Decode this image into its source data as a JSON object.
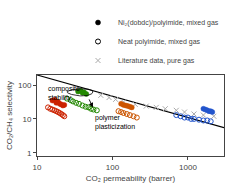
{
  "chart_data": {
    "type": "scatter",
    "xlabel": "CO₂ permeability (barrer)",
    "ylabel": "CO₂/CH₄ selectivity",
    "log": true,
    "xlim": [
      10,
      3000
    ],
    "ylim": [
      0.8,
      200
    ],
    "xticks": [
      10,
      100,
      1000
    ],
    "yticks": [
      1,
      10,
      100
    ],
    "grid": false,
    "legend": "upper right",
    "series": [
      {
        "name": "Ni₂(dobdc)/polyimide, mixed gas",
        "type": "scatter",
        "color": "#000000",
        "marker": "circle",
        "x": [],
        "values": []
      },
      {
        "name": "Neat polyimide, mixed gas",
        "type": "scatter",
        "color": "#000000",
        "marker": "circle-open",
        "x": [],
        "values": []
      },
      {
        "type": "line",
        "color": "#000000",
        "line_style": "solid",
        "x": [
          10,
          3000
        ],
        "values": [
          200,
          5.5
        ]
      },
      {
        "name": "Literature data, pure gas",
        "type": "scatter",
        "color": "#aaaaaa",
        "marker": "x",
        "x": [
          70,
          90,
          110,
          140,
          200,
          280,
          380,
          500,
          700,
          900,
          1200,
          1600,
          2200
        ],
        "values": [
          50,
          43,
          38,
          32,
          27,
          24,
          22,
          20,
          18,
          16,
          14,
          13,
          12
        ]
      },
      {
        "type": "scatter",
        "color": "#cc2200",
        "marker": "circle",
        "x": [
          16,
          17,
          18,
          18,
          19,
          20,
          21,
          22,
          23
        ],
        "values": [
          35,
          37,
          33,
          30,
          32,
          28,
          27,
          25,
          26
        ]
      },
      {
        "type": "scatter",
        "color": "#cc2200",
        "marker": "circle-open",
        "x": [
          14,
          15,
          16,
          17,
          18,
          19,
          20,
          21,
          22,
          23
        ],
        "values": [
          22,
          20,
          19,
          18,
          17,
          16,
          15,
          14,
          13,
          12
        ]
      },
      {
        "type": "scatter",
        "color": "#228800",
        "marker": "circle",
        "x": [
          35,
          38,
          40,
          42,
          45
        ],
        "values": [
          65,
          68,
          60,
          62,
          55
        ]
      },
      {
        "type": "scatter",
        "color": "#228800",
        "marker": "circle-open",
        "x": [
          25,
          28,
          30,
          33,
          36,
          40,
          44,
          48,
          52,
          56,
          62
        ],
        "values": [
          40,
          36,
          33,
          30,
          28,
          25,
          23,
          22,
          20,
          19,
          18
        ]
      },
      {
        "type": "scatter",
        "color": "#cc5500",
        "marker": "circle",
        "x": [
          130,
          140,
          150,
          160,
          170,
          180
        ],
        "values": [
          28,
          26,
          25,
          24,
          23,
          22
        ]
      },
      {
        "type": "scatter",
        "color": "#cc5500",
        "marker": "circle-open",
        "x": [
          120,
          130,
          140,
          155,
          170,
          190,
          210
        ],
        "values": [
          17,
          16,
          15,
          14,
          13,
          12,
          11
        ]
      },
      {
        "type": "scatter",
        "color": "#2255cc",
        "marker": "circle",
        "x": [
          1600,
          1700,
          1800,
          1900,
          2000,
          2100
        ],
        "values": [
          20,
          19,
          18,
          17,
          17,
          16
        ]
      },
      {
        "type": "scatter",
        "color": "#2255cc",
        "marker": "circle-open",
        "x": [
          700,
          800,
          900,
          1000,
          1100,
          1200,
          1400,
          1600,
          1800,
          2000
        ],
        "values": [
          13,
          12,
          11,
          11,
          10,
          10,
          9.5,
          9,
          9,
          8.5
        ]
      }
    ],
    "ellipse": {
      "cx": 40,
      "cy": 63,
      "width": 30,
      "height": 30,
      "color": "#000000"
    },
    "arrow": {
      "from": [
        48,
        42
      ],
      "to": [
        55,
        22
      ],
      "color": "#000000"
    },
    "annotations": [
      {
        "text": "composite\nstability",
        "x": 13,
        "y": 115
      },
      {
        "text": "polymer\nplasticization",
        "x": 55,
        "y": 16
      }
    ]
  }
}
